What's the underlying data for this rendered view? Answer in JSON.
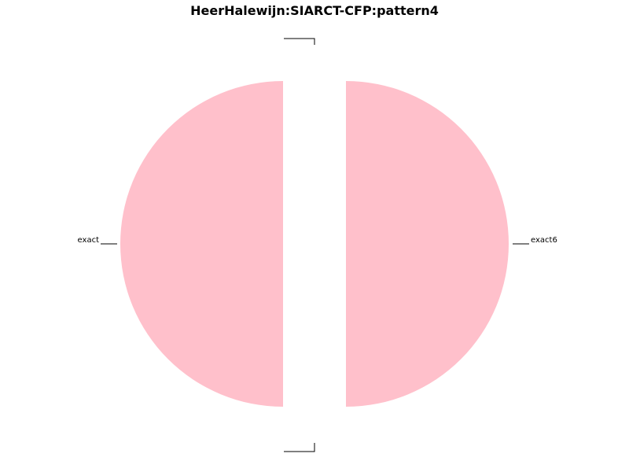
{
  "chart_data": {
    "type": "pie",
    "title": "HeerHalewijn:SIARCT-CFP:pattern4",
    "slices": [
      {
        "label": "exact6",
        "value": 0.5,
        "color": "#ffc0cb"
      },
      {
        "label": "",
        "value": 0.0,
        "color": "#ffc0cb"
      },
      {
        "label": "exact",
        "value": 0.5,
        "color": "#ffc0cb"
      },
      {
        "label": "",
        "value": 0.0,
        "color": "#ffc0cb"
      }
    ],
    "legend": "none"
  }
}
